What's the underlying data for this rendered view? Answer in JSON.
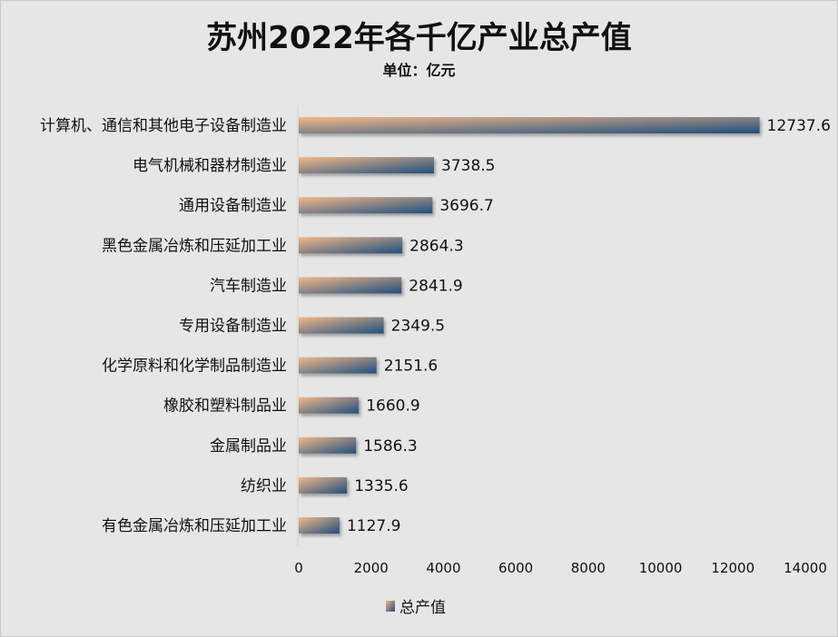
{
  "chart_data": {
    "type": "bar",
    "orientation": "horizontal",
    "title": "苏州2022年各千亿产业总产值",
    "subtitle": "单位：亿元",
    "categories": [
      "计算机、通信和其他电子设备制造业",
      "电气机械和器材制造业",
      "通用设备制造业",
      "黑色金属冶炼和压延加工业",
      "汽车制造业",
      "专用设备制造业",
      "化学原料和化学制品制造业",
      "橡胶和塑料制品业",
      "金属制品业",
      "纺织业",
      "有色金属冶炼和压延加工业"
    ],
    "series": [
      {
        "name": "总产值",
        "values": [
          12737.6,
          3738.5,
          3696.7,
          2864.3,
          2841.9,
          2349.5,
          2151.6,
          1660.9,
          1586.3,
          1335.6,
          1127.9
        ]
      }
    ],
    "value_labels": [
      "12737.6",
      "3738.5",
      "3696.7",
      "2864.3",
      "2841.9",
      "2349.5",
      "2151.6",
      "1660.9",
      "1586.3",
      "1335.6",
      "1127.9"
    ],
    "xlim": [
      0,
      14000
    ],
    "xticks": [
      "0",
      "2000",
      "4000",
      "6000",
      "8000",
      "10000",
      "12000",
      "14000"
    ],
    "grid": false,
    "legend": "bottom",
    "colors": {
      "gradient_start": "#f2b98a",
      "gradient_end": "#1f4e7e"
    }
  }
}
